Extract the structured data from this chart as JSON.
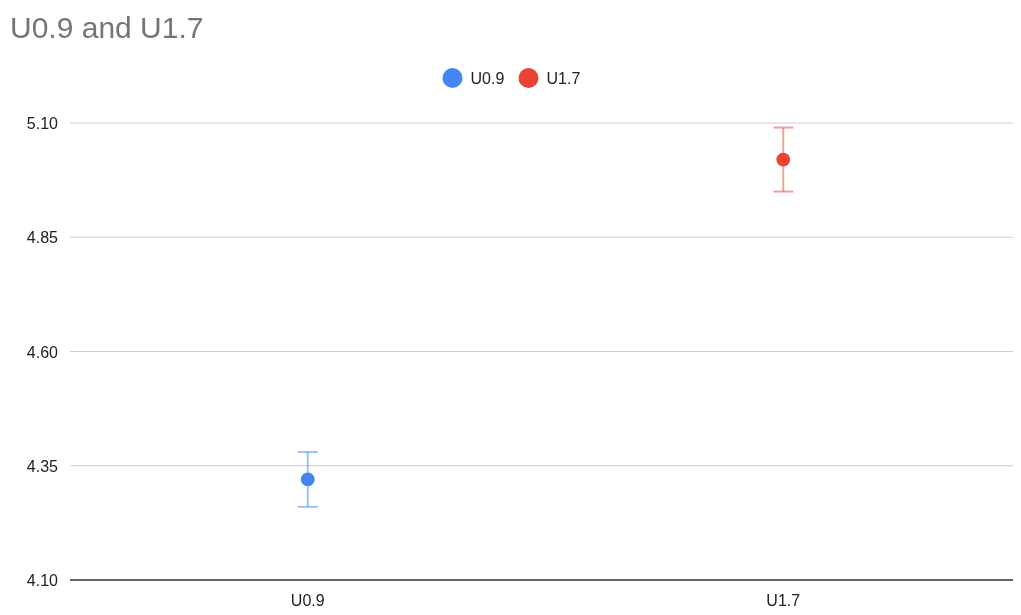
{
  "chart_data": {
    "type": "scatter",
    "title": "U0.9 and U1.7",
    "categories": [
      "U0.9",
      "U1.7"
    ],
    "series": [
      {
        "name": "U0.9",
        "color": "#4285f4",
        "values": [
          4.32,
          null
        ],
        "errors": [
          0.06,
          null
        ]
      },
      {
        "name": "U1.7",
        "color": "#ea4335",
        "values": [
          null,
          5.02
        ],
        "errors": [
          null,
          0.07
        ]
      }
    ],
    "ylim": [
      4.1,
      5.1
    ],
    "yticks": [
      {
        "value": 4.1,
        "label": "4.10"
      },
      {
        "value": 4.35,
        "label": "4.35"
      },
      {
        "value": 4.6,
        "label": "4.60"
      },
      {
        "value": 4.85,
        "label": "4.85"
      },
      {
        "value": 5.1,
        "label": "5.10"
      }
    ],
    "grid": "y",
    "legend": "top",
    "marker": "circle"
  }
}
